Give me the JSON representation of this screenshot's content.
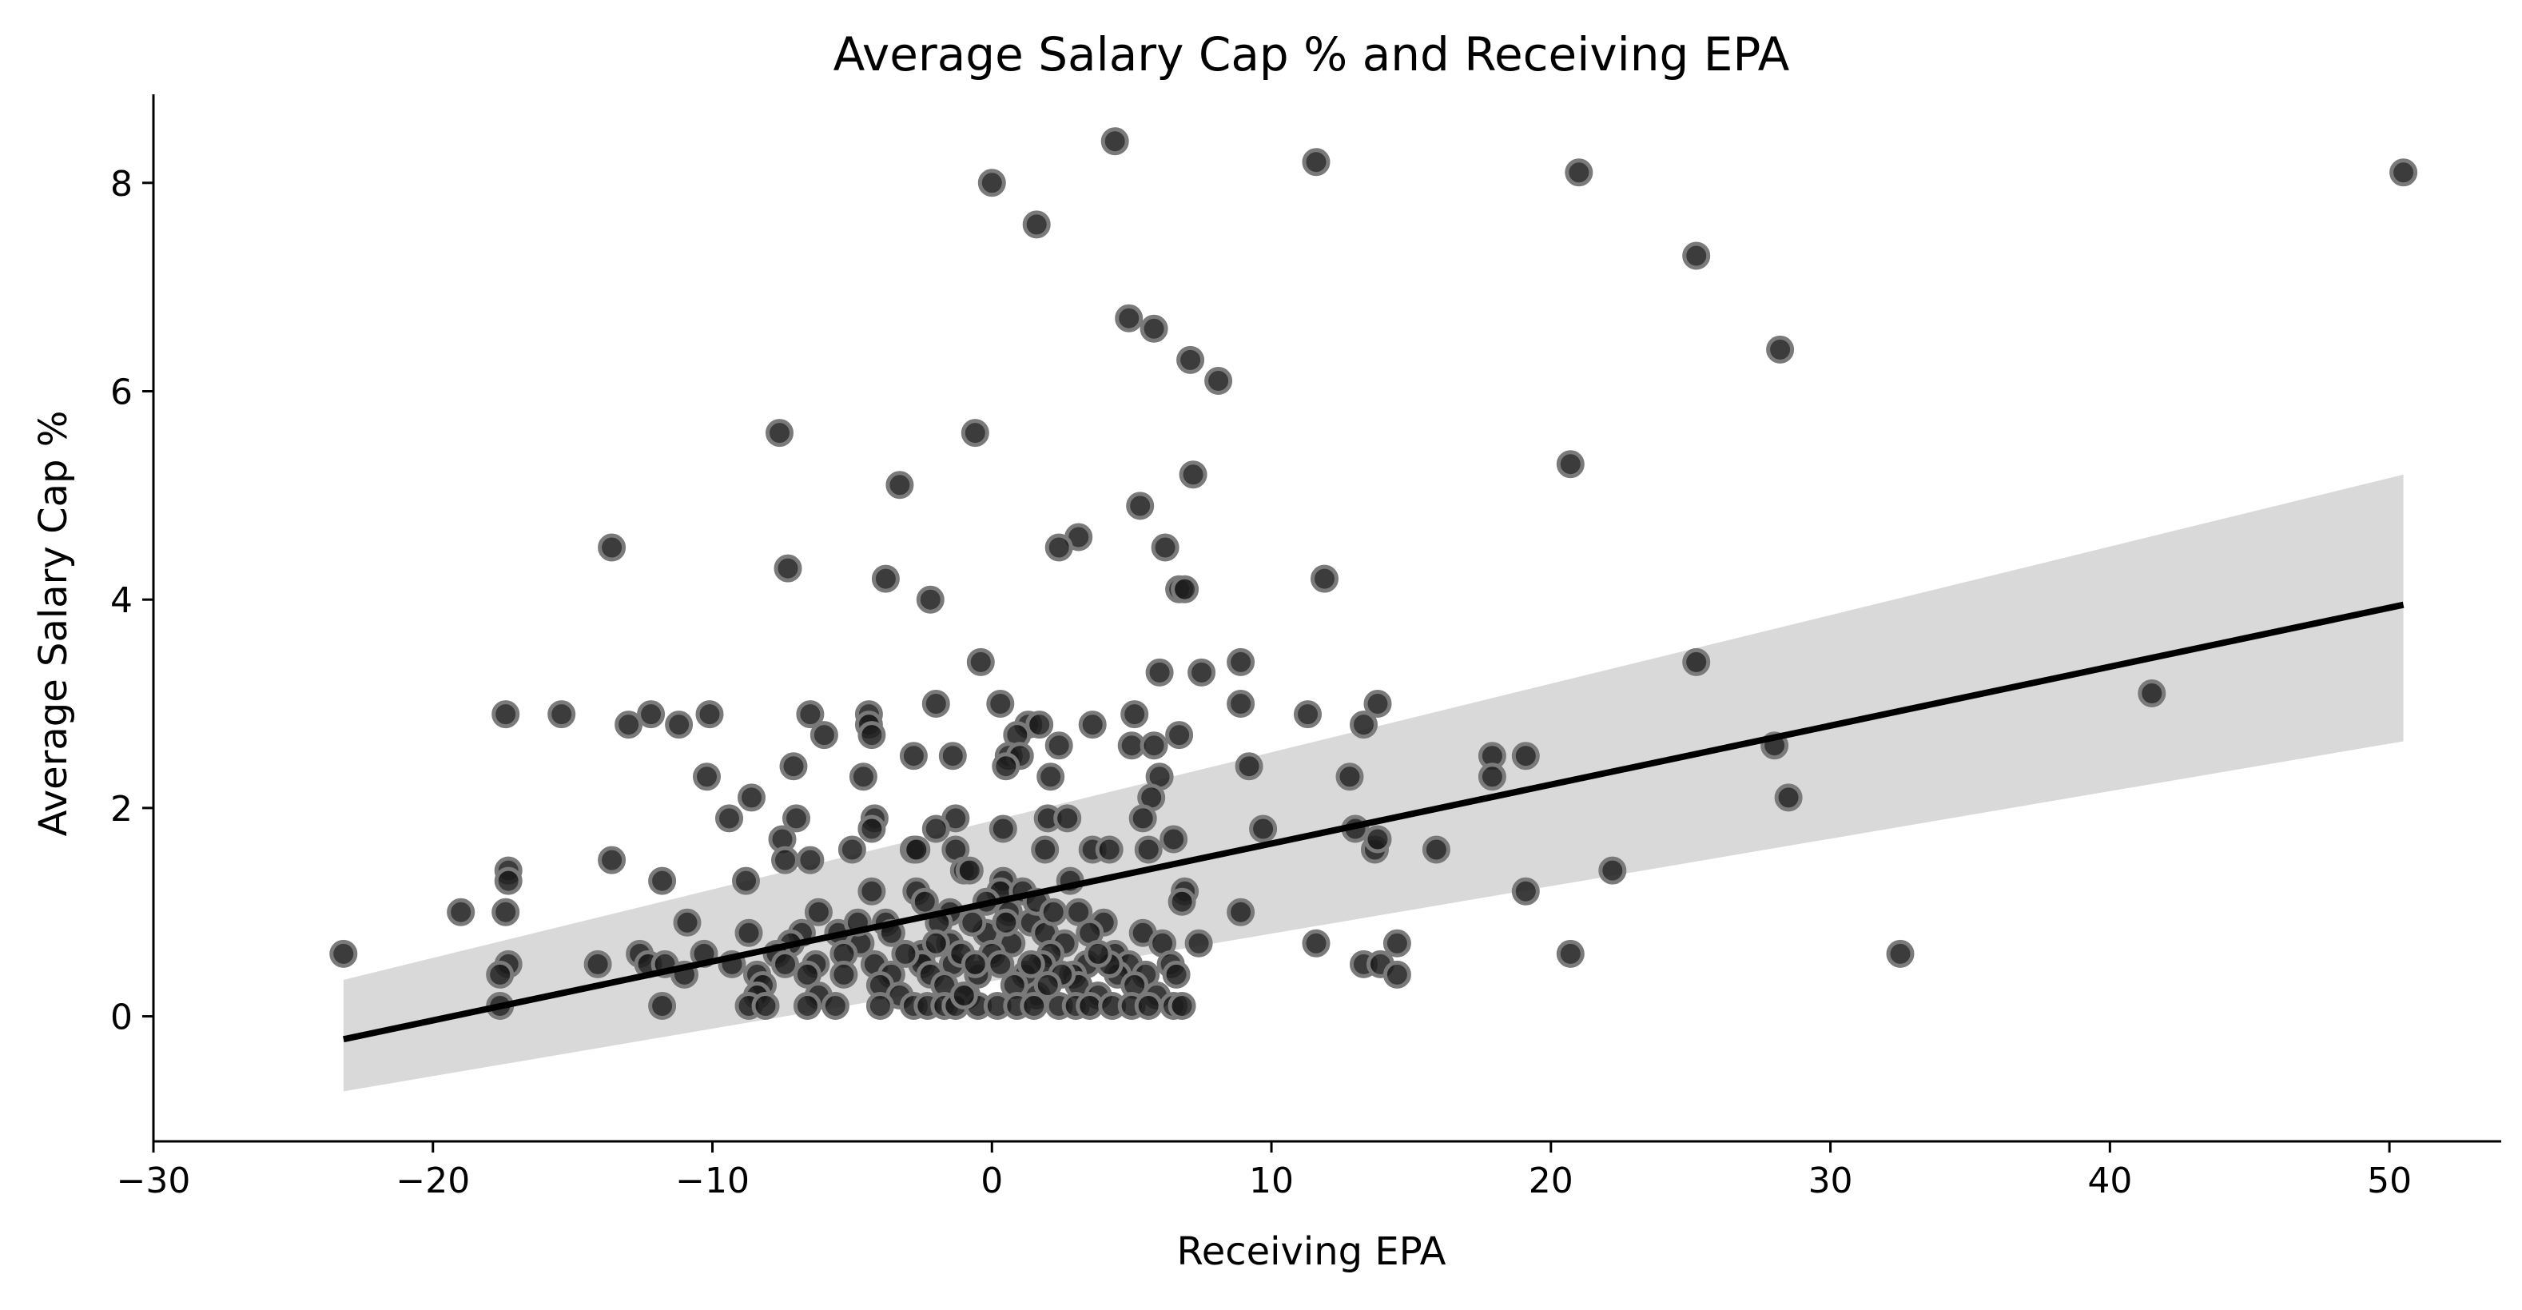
{
  "chart_data": {
    "type": "scatter",
    "title": "Average Salary Cap % and Receiving EPA",
    "xlabel": "Receiving EPA",
    "ylabel": "Average Salary Cap %",
    "xlim": [
      -30,
      54
    ],
    "ylim": [
      -1.2,
      8.85
    ],
    "x_ticks": [
      -30,
      -20,
      -10,
      0,
      10,
      20,
      30,
      40,
      50
    ],
    "x_tick_labels": [
      "−30",
      "−20",
      "−10",
      "0",
      "10",
      "20",
      "30",
      "40",
      "50"
    ],
    "y_ticks": [
      0,
      2,
      4,
      6,
      8
    ],
    "y_tick_labels": [
      "0",
      "2",
      "4",
      "6",
      "8"
    ],
    "grid": false,
    "legend": "none",
    "colors": {
      "points": "#1a1a1a",
      "point_edge": "#7a7a7a",
      "regression_line": "#000000",
      "confidence_band": "#d9d9d9"
    },
    "regression": {
      "x": [
        -23.2,
        50.5
      ],
      "y": [
        -0.22,
        3.95
      ],
      "ci_lower": [
        -0.72,
        2.64
      ],
      "ci_upper": [
        0.35,
        5.2
      ]
    },
    "points": [
      [
        4.4,
        8.4
      ],
      [
        11.6,
        8.2
      ],
      [
        0,
        8.0
      ],
      [
        21,
        8.1
      ],
      [
        50.5,
        8.1
      ],
      [
        1.6,
        7.6
      ],
      [
        25.2,
        7.3
      ],
      [
        4.9,
        6.7
      ],
      [
        5.8,
        6.6
      ],
      [
        28.2,
        6.4
      ],
      [
        7.1,
        6.3
      ],
      [
        8.1,
        6.1
      ],
      [
        -7.6,
        5.6
      ],
      [
        -0.6,
        5.6
      ],
      [
        20.7,
        5.3
      ],
      [
        7.2,
        5.2
      ],
      [
        -3.3,
        5.1
      ],
      [
        5.3,
        4.9
      ],
      [
        3.1,
        4.6
      ],
      [
        2.4,
        4.5
      ],
      [
        6.2,
        4.5
      ],
      [
        -13.6,
        4.5
      ],
      [
        -7.3,
        4.3
      ],
      [
        -3.8,
        4.2
      ],
      [
        11.9,
        4.2
      ],
      [
        6.7,
        4.1
      ],
      [
        6.9,
        4.1
      ],
      [
        -2.2,
        4.0
      ],
      [
        25.2,
        3.4
      ],
      [
        -0.4,
        3.4
      ],
      [
        8.9,
        3.4
      ],
      [
        6.0,
        3.3
      ],
      [
        7.5,
        3.3
      ],
      [
        41.5,
        3.1
      ],
      [
        -17.4,
        2.9
      ],
      [
        -15.4,
        2.9
      ],
      [
        -12.2,
        2.9
      ],
      [
        -10.1,
        2.9
      ],
      [
        -6.5,
        2.9
      ],
      [
        -4.4,
        2.9
      ],
      [
        5.1,
        2.9
      ],
      [
        11.3,
        2.9
      ],
      [
        -2.0,
        3.0
      ],
      [
        0.3,
        3.0
      ],
      [
        8.9,
        3.0
      ],
      [
        13.8,
        3.0
      ],
      [
        -13.0,
        2.8
      ],
      [
        -11.2,
        2.8
      ],
      [
        -4.4,
        2.8
      ],
      [
        1.3,
        2.8
      ],
      [
        1.7,
        2.8
      ],
      [
        3.6,
        2.8
      ],
      [
        13.3,
        2.8
      ],
      [
        -6.0,
        2.7
      ],
      [
        -4.3,
        2.7
      ],
      [
        0.9,
        2.7
      ],
      [
        6.7,
        2.7
      ],
      [
        -7.1,
        2.4
      ],
      [
        -2.8,
        2.5
      ],
      [
        -1.4,
        2.5
      ],
      [
        0.6,
        2.5
      ],
      [
        1.0,
        2.5
      ],
      [
        17.9,
        2.5
      ],
      [
        19.1,
        2.5
      ],
      [
        5.0,
        2.6
      ],
      [
        5.8,
        2.6
      ],
      [
        2.4,
        2.6
      ],
      [
        28.0,
        2.6
      ],
      [
        -10.2,
        2.3
      ],
      [
        -4.6,
        2.3
      ],
      [
        2.1,
        2.3
      ],
      [
        6.0,
        2.3
      ],
      [
        12.8,
        2.3
      ],
      [
        17.9,
        2.3
      ],
      [
        9.2,
        2.4
      ],
      [
        0.5,
        2.4
      ],
      [
        -8.6,
        2.1
      ],
      [
        5.7,
        2.1
      ],
      [
        28.5,
        2.1
      ],
      [
        -9.4,
        1.9
      ],
      [
        -7.0,
        1.9
      ],
      [
        -4.2,
        1.9
      ],
      [
        -1.3,
        1.9
      ],
      [
        2.0,
        1.9
      ],
      [
        2.7,
        1.9
      ],
      [
        5.4,
        1.9
      ],
      [
        -7.5,
        1.7
      ],
      [
        -4.3,
        1.8
      ],
      [
        -2.0,
        1.8
      ],
      [
        0.4,
        1.8
      ],
      [
        9.7,
        1.8
      ],
      [
        13.0,
        1.8
      ],
      [
        -7.4,
        1.5
      ],
      [
        -6.5,
        1.5
      ],
      [
        -5.0,
        1.6
      ],
      [
        -2.8,
        1.6
      ],
      [
        -2.7,
        1.6
      ],
      [
        -1.3,
        1.6
      ],
      [
        1.9,
        1.6
      ],
      [
        3.6,
        1.6
      ],
      [
        4.2,
        1.6
      ],
      [
        5.6,
        1.6
      ],
      [
        13.7,
        1.6
      ],
      [
        15.9,
        1.6
      ],
      [
        6.5,
        1.7
      ],
      [
        13.8,
        1.7
      ],
      [
        -13.6,
        1.5
      ],
      [
        -1.0,
        1.4
      ],
      [
        -17.3,
        1.4
      ],
      [
        -17.3,
        1.3
      ],
      [
        -11.8,
        1.3
      ],
      [
        -8.8,
        1.3
      ],
      [
        -0.8,
        1.4
      ],
      [
        0.4,
        1.3
      ],
      [
        2.8,
        1.3
      ],
      [
        22.2,
        1.4
      ],
      [
        -4.3,
        1.2
      ],
      [
        -2.7,
        1.2
      ],
      [
        0.3,
        1.2
      ],
      [
        1.1,
        1.2
      ],
      [
        6.9,
        1.2
      ],
      [
        19.1,
        1.2
      ],
      [
        -17.4,
        1.0
      ],
      [
        -19.0,
        1.0
      ],
      [
        -6.2,
        1.0
      ],
      [
        -1.5,
        1.0
      ],
      [
        3.1,
        1.0
      ],
      [
        8.9,
        1.0
      ],
      [
        6.8,
        1.1
      ],
      [
        -10.9,
        0.9
      ],
      [
        -3.8,
        0.9
      ],
      [
        1.4,
        0.9
      ],
      [
        4.0,
        0.9
      ],
      [
        -8.7,
        0.8
      ],
      [
        -6.8,
        0.8
      ],
      [
        -5.5,
        0.8
      ],
      [
        -3.6,
        0.8
      ],
      [
        -0.2,
        0.8
      ],
      [
        1.9,
        0.8
      ],
      [
        3.5,
        0.8
      ],
      [
        5.4,
        0.8
      ],
      [
        -7.2,
        0.7
      ],
      [
        -4.7,
        0.7
      ],
      [
        -1.5,
        0.7
      ],
      [
        0.7,
        0.7
      ],
      [
        2.6,
        0.7
      ],
      [
        6.1,
        0.7
      ],
      [
        7.4,
        0.7
      ],
      [
        11.6,
        0.7
      ],
      [
        14.5,
        0.7
      ],
      [
        -23.2,
        0.6
      ],
      [
        -12.6,
        0.6
      ],
      [
        -10.3,
        0.6
      ],
      [
        -7.7,
        0.6
      ],
      [
        -5.3,
        0.6
      ],
      [
        -2.5,
        0.6
      ],
      [
        0.0,
        0.6
      ],
      [
        2.1,
        0.6
      ],
      [
        4.4,
        0.6
      ],
      [
        20.7,
        0.6
      ],
      [
        32.5,
        0.6
      ],
      [
        -17.3,
        0.5
      ],
      [
        -14.1,
        0.5
      ],
      [
        -12.3,
        0.5
      ],
      [
        -11.7,
        0.5
      ],
      [
        -9.3,
        0.5
      ],
      [
        -7.4,
        0.5
      ],
      [
        -6.3,
        0.5
      ],
      [
        -4.2,
        0.5
      ],
      [
        -2.5,
        0.5
      ],
      [
        -1.4,
        0.5
      ],
      [
        0.3,
        0.5
      ],
      [
        1.8,
        0.5
      ],
      [
        3.4,
        0.5
      ],
      [
        4.9,
        0.5
      ],
      [
        6.4,
        0.5
      ],
      [
        13.3,
        0.5
      ],
      [
        13.9,
        0.5
      ],
      [
        -17.6,
        0.4
      ],
      [
        -11.0,
        0.4
      ],
      [
        -8.4,
        0.4
      ],
      [
        -6.6,
        0.4
      ],
      [
        -5.3,
        0.4
      ],
      [
        -3.6,
        0.4
      ],
      [
        -2.2,
        0.4
      ],
      [
        -0.5,
        0.4
      ],
      [
        1.2,
        0.4
      ],
      [
        2.9,
        0.4
      ],
      [
        4.5,
        0.4
      ],
      [
        5.5,
        0.4
      ],
      [
        6.6,
        0.4
      ],
      [
        14.5,
        0.4
      ],
      [
        -8.2,
        0.3
      ],
      [
        -4.0,
        0.3
      ],
      [
        -1.7,
        0.3
      ],
      [
        0.8,
        0.3
      ],
      [
        3.1,
        0.3
      ],
      [
        5.1,
        0.3
      ],
      [
        -8.4,
        0.2
      ],
      [
        -6.2,
        0.2
      ],
      [
        -3.3,
        0.2
      ],
      [
        -0.9,
        0.2
      ],
      [
        1.6,
        0.2
      ],
      [
        3.8,
        0.2
      ],
      [
        5.9,
        0.2
      ],
      [
        -17.6,
        0.1
      ],
      [
        -11.8,
        0.1
      ],
      [
        -8.7,
        0.1
      ],
      [
        -8.1,
        0.1
      ],
      [
        -6.6,
        0.1
      ],
      [
        -5.6,
        0.1
      ],
      [
        -4.0,
        0.1
      ],
      [
        -2.8,
        0.1
      ],
      [
        -2.3,
        0.1
      ],
      [
        -1.7,
        0.1
      ],
      [
        -1.3,
        0.1
      ],
      [
        -0.5,
        0.1
      ],
      [
        0.2,
        0.1
      ],
      [
        0.9,
        0.1
      ],
      [
        1.5,
        0.1
      ],
      [
        2.4,
        0.1
      ],
      [
        3.0,
        0.1
      ],
      [
        3.5,
        0.1
      ],
      [
        4.3,
        0.1
      ],
      [
        5.0,
        0.1
      ],
      [
        5.6,
        0.1
      ],
      [
        6.5,
        0.1
      ],
      [
        6.8,
        0.1
      ],
      [
        -2.4,
        1.1
      ],
      [
        -1.9,
        0.9
      ],
      [
        -0.7,
        0.9
      ],
      [
        0.6,
        1.0
      ],
      [
        1.6,
        1.1
      ],
      [
        2.2,
        1.0
      ],
      [
        -1.1,
        0.6
      ],
      [
        -0.6,
        0.5
      ],
      [
        1.4,
        0.5
      ],
      [
        2.5,
        0.4
      ],
      [
        -3.1,
        0.6
      ],
      [
        4.2,
        0.5
      ],
      [
        3.8,
        0.6
      ],
      [
        -0.2,
        1.1
      ],
      [
        -4.8,
        0.9
      ],
      [
        -1.0,
        0.2
      ],
      [
        2.0,
        0.3
      ],
      [
        0.5,
        0.9
      ],
      [
        -2.0,
        0.7
      ]
    ]
  }
}
